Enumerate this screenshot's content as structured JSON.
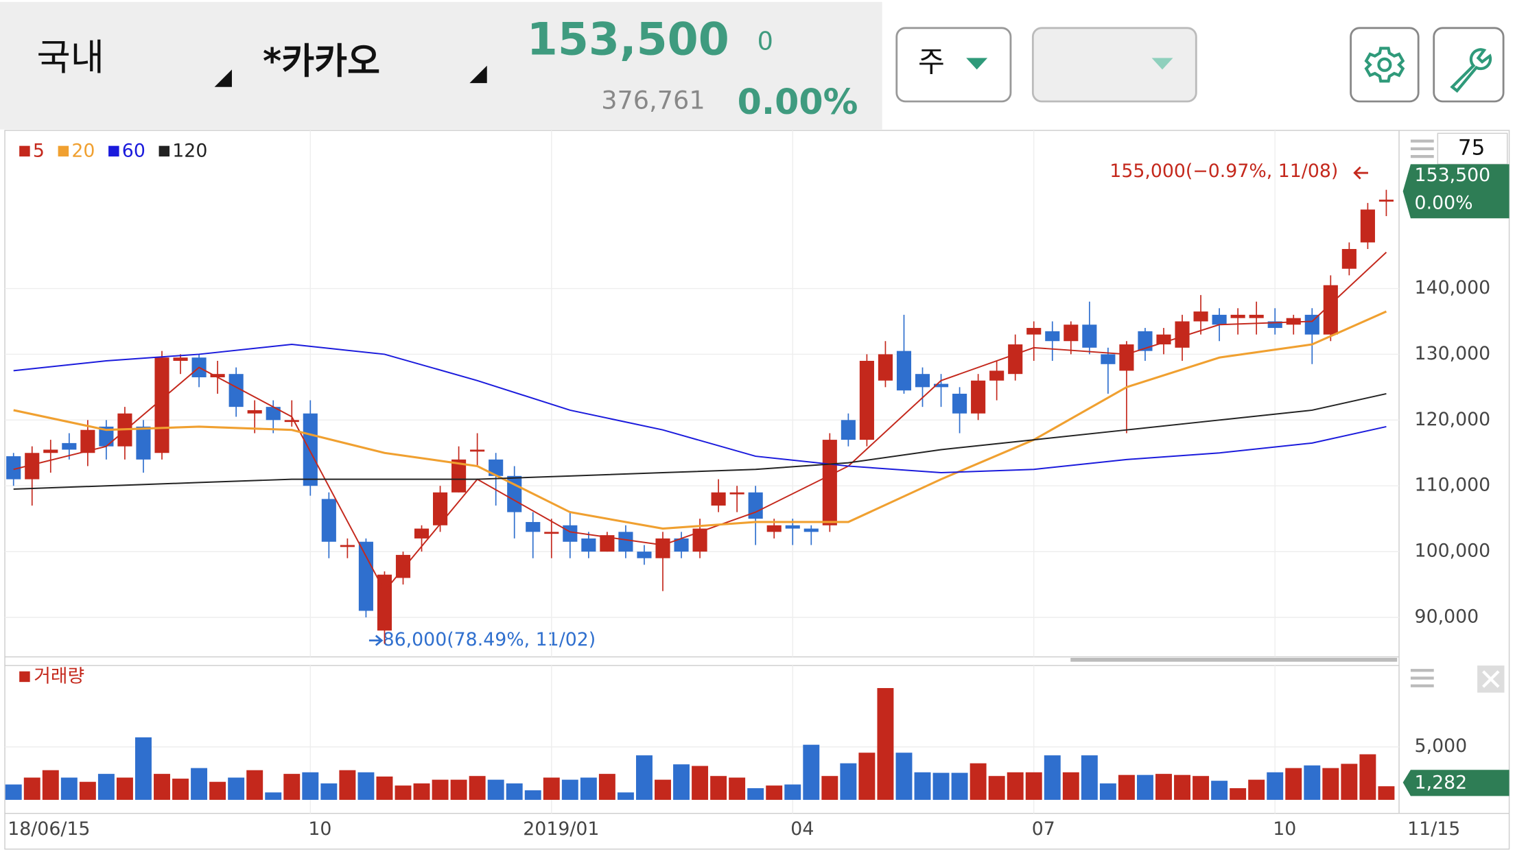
{
  "header": {
    "market": "국내",
    "stock": "*카카오",
    "price": "153,500",
    "change": "0",
    "volume": "376,761",
    "change_pct": "0.00%",
    "period": "주",
    "counter": "75"
  },
  "chart_data": {
    "type": "candlestick",
    "categories": [
      "18/06/15",
      null,
      null,
      null,
      null,
      null,
      null,
      null,
      null,
      null,
      null,
      null,
      null,
      null,
      null,
      null,
      "10",
      null,
      null,
      null,
      null,
      null,
      null,
      null,
      null,
      null,
      null,
      null,
      null,
      "2019/01",
      null,
      null,
      null,
      null,
      null,
      null,
      null,
      null,
      null,
      null,
      null,
      null,
      "04",
      null,
      null,
      null,
      null,
      null,
      null,
      null,
      null,
      null,
      null,
      null,
      null,
      "07",
      null,
      null,
      null,
      null,
      null,
      null,
      null,
      null,
      null,
      null,
      null,
      null,
      "10",
      null,
      null,
      null,
      null,
      null,
      "11/15"
    ],
    "open": [
      114500,
      111000,
      115000,
      116500,
      115000,
      119000,
      116000,
      119000,
      115000,
      129000,
      129500,
      126500,
      127000,
      121000,
      122000,
      120000,
      121000,
      108000,
      101000,
      101500,
      88000,
      96000,
      102000,
      104000,
      109000,
      115500,
      114000,
      111500,
      104500,
      103000,
      104000,
      102000,
      100000,
      103000,
      100000,
      99000,
      102000,
      100000,
      107000,
      109000,
      109000,
      103000,
      104000,
      103500,
      104000,
      120000,
      117000,
      126000,
      130500,
      127000,
      125500,
      124000,
      121000,
      126000,
      127000,
      133000,
      133500,
      132000,
      134500,
      130000,
      127500,
      133500,
      131500,
      131000,
      135000,
      136000,
      135500,
      135500,
      135000,
      134500,
      136000,
      133000,
      143000,
      147000,
      153500
    ],
    "high": [
      115000,
      116000,
      117000,
      118000,
      120000,
      120000,
      122000,
      120000,
      130500,
      130000,
      130000,
      129000,
      128000,
      123000,
      123000,
      123000,
      123000,
      109000,
      102000,
      102000,
      97000,
      100000,
      104000,
      110000,
      116000,
      118000,
      115000,
      113000,
      106000,
      105000,
      106000,
      103000,
      103000,
      104000,
      101000,
      103000,
      103000,
      105000,
      111000,
      110000,
      110000,
      105000,
      105000,
      104000,
      118000,
      121000,
      130000,
      132000,
      136000,
      128000,
      127000,
      125000,
      127000,
      129000,
      133000,
      135000,
      135000,
      135000,
      138000,
      131000,
      132000,
      134000,
      134000,
      136000,
      139000,
      137000,
      137000,
      138000,
      137000,
      136000,
      137000,
      142000,
      147000,
      153000,
      155000
    ],
    "low": [
      110000,
      107000,
      112000,
      114000,
      113000,
      114000,
      114000,
      112000,
      114000,
      127000,
      125000,
      124000,
      120500,
      118000,
      118000,
      119000,
      108500,
      99000,
      99000,
      90000,
      86000,
      95000,
      100000,
      103000,
      109000,
      113000,
      107000,
      102000,
      99000,
      99000,
      99000,
      99000,
      100000,
      99000,
      98000,
      94000,
      99000,
      99000,
      106000,
      106000,
      101000,
      102000,
      101000,
      101000,
      103000,
      116000,
      116000,
      125000,
      124000,
      122000,
      122000,
      118000,
      120000,
      123000,
      126000,
      129000,
      129000,
      130000,
      130000,
      124000,
      118000,
      129000,
      130000,
      129000,
      133000,
      132000,
      133000,
      133000,
      133000,
      133000,
      128500,
      132000,
      142000,
      146000,
      151000
    ],
    "close": [
      111000,
      115000,
      115500,
      115500,
      118500,
      116000,
      121000,
      114000,
      129500,
      129500,
      126500,
      127000,
      122000,
      121500,
      120000,
      120000,
      110000,
      101500,
      101000,
      91000,
      96500,
      99500,
      103500,
      109000,
      114000,
      115500,
      111500,
      106000,
      103000,
      103000,
      101500,
      100000,
      102500,
      100000,
      99000,
      102000,
      100000,
      103500,
      109000,
      109000,
      105000,
      104000,
      103500,
      103000,
      117000,
      117000,
      129000,
      130000,
      124500,
      125000,
      125000,
      121000,
      126000,
      127500,
      131500,
      134000,
      132000,
      134500,
      131000,
      128500,
      131500,
      130500,
      133000,
      135000,
      136500,
      134500,
      136000,
      136000,
      134000,
      135500,
      133000,
      140500,
      146000,
      152000,
      153500
    ],
    "up_color": "#c4281c",
    "down_color": "#2f6fce",
    "ylim": [
      84000,
      163000
    ],
    "yticks": [
      {
        "value": 90000,
        "label": "90,000"
      },
      {
        "value": 100000,
        "label": "100,000"
      },
      {
        "value": 110000,
        "label": "110,000"
      },
      {
        "value": 120000,
        "label": "120,000"
      },
      {
        "value": 130000,
        "label": "130,000"
      },
      {
        "value": 140000,
        "label": "140,000"
      }
    ],
    "grid": true,
    "series": [
      {
        "name": "5",
        "color": "#c4281c",
        "x": [
          0,
          5,
          10,
          15,
          20,
          25,
          30,
          35,
          40,
          45,
          50,
          55,
          60,
          65,
          70,
          74
        ],
        "values": [
          112500,
          116000,
          128000,
          120500,
          94000,
          111000,
          103000,
          101000,
          106000,
          113000,
          126000,
          131000,
          130000,
          134500,
          135000,
          145500
        ]
      },
      {
        "name": "20",
        "color": "#f0a030",
        "x": [
          0,
          5,
          10,
          15,
          20,
          25,
          30,
          35,
          40,
          45,
          50,
          55,
          60,
          65,
          70,
          74
        ],
        "values": [
          121500,
          118500,
          119000,
          118500,
          115000,
          113000,
          106000,
          103500,
          104500,
          104500,
          111000,
          117000,
          125000,
          129500,
          131500,
          136500
        ]
      },
      {
        "name": "60",
        "color": "#1a1adc",
        "x": [
          0,
          5,
          10,
          15,
          20,
          25,
          30,
          35,
          40,
          45,
          50,
          55,
          60,
          65,
          70,
          74
        ],
        "values": [
          127500,
          129000,
          130000,
          131500,
          130000,
          126000,
          121500,
          118500,
          114500,
          113000,
          112000,
          112500,
          114000,
          115000,
          116500,
          119000
        ]
      },
      {
        "name": "120",
        "color": "#222222",
        "x": [
          0,
          5,
          10,
          15,
          20,
          25,
          30,
          35,
          40,
          45,
          50,
          55,
          60,
          65,
          70,
          74
        ],
        "values": [
          109500,
          110000,
          110500,
          111000,
          111000,
          111000,
          111500,
          112000,
          112500,
          113500,
          115500,
          117000,
          118500,
          120000,
          121500,
          124000
        ]
      }
    ],
    "high_annotation": "155,000(−0.97%, 11/08)",
    "low_annotation": "86,000(78.49%, 11/02)",
    "volume": {
      "name": "거래량",
      "color": "#c4281c",
      "values": [
        1450,
        2100,
        2800,
        2100,
        1700,
        2450,
        2100,
        5900,
        2450,
        2000,
        3000,
        1700,
        2100,
        2800,
        700,
        2450,
        2600,
        1550,
        2800,
        2600,
        2200,
        1350,
        1550,
        1900,
        1900,
        2250,
        1900,
        1550,
        900,
        2100,
        1900,
        2100,
        2450,
        700,
        4200,
        1900,
        3350,
        3200,
        2250,
        2100,
        1100,
        1350,
        1450,
        5200,
        2250,
        3450,
        4450,
        10550,
        4450,
        2600,
        2550,
        2550,
        3450,
        2250,
        2600,
        2600,
        4200,
        2600,
        4200,
        1550,
        2350,
        2350,
        2450,
        2350,
        2250,
        1800,
        1100,
        1900,
        2600,
        3000,
        3250,
        3000,
        3400,
        4300,
        1282
      ],
      "value_labels": {
        "74": "1,282"
      },
      "ylim": [
        0,
        12400
      ],
      "yticks": [
        {
          "value": 5000,
          "label": "5,000"
        }
      ]
    }
  }
}
